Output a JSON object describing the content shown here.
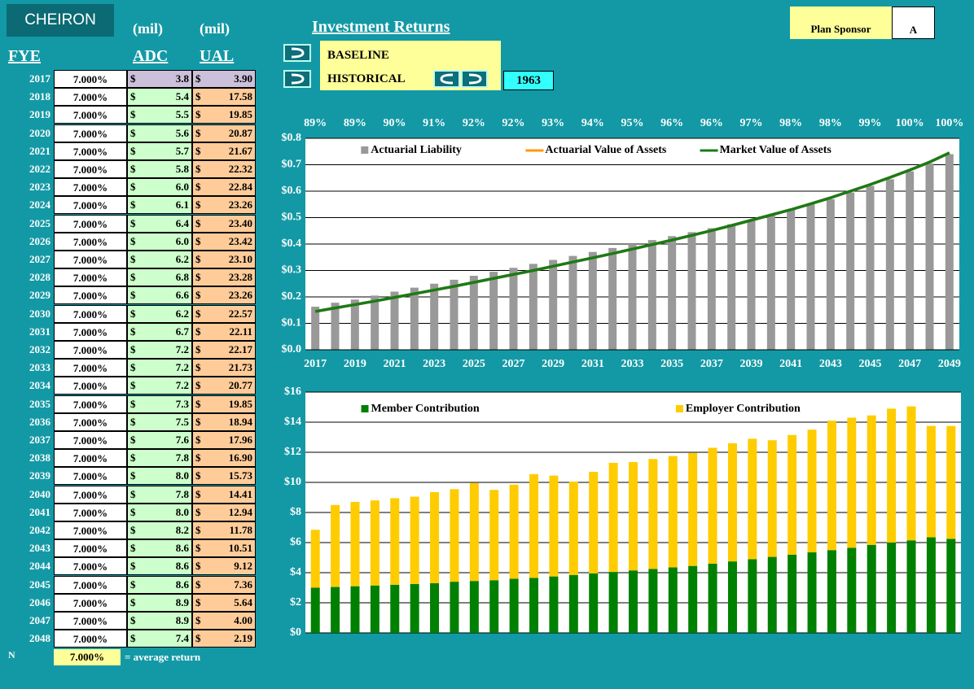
{
  "header": {
    "logo": "CHEIRON",
    "unit_adc": "(mil)",
    "unit_ual": "(mil)",
    "col_fye": "FYE",
    "col_adc": "ADC",
    "col_ual": "UAL",
    "section": "Investment Returns",
    "scenario_1": "BASELINE",
    "scenario_2": "HISTORICAL",
    "start_year": "1963",
    "sponsor_label": "Plan Sponsor",
    "sponsor": "A"
  },
  "table": {
    "currency": "$",
    "rows": [
      [
        "2017",
        "7.000%",
        "3.8",
        "3.90"
      ],
      [
        "2018",
        "7.000%",
        "5.4",
        "17.58"
      ],
      [
        "2019",
        "7.000%",
        "5.5",
        "19.85"
      ],
      [
        "2020",
        "7.000%",
        "5.6",
        "20.87"
      ],
      [
        "2021",
        "7.000%",
        "5.7",
        "21.67"
      ],
      [
        "2022",
        "7.000%",
        "5.8",
        "22.32"
      ],
      [
        "2023",
        "7.000%",
        "6.0",
        "22.84"
      ],
      [
        "2024",
        "7.000%",
        "6.1",
        "23.26"
      ],
      [
        "2025",
        "7.000%",
        "6.4",
        "23.40"
      ],
      [
        "2026",
        "7.000%",
        "6.0",
        "23.42"
      ],
      [
        "2027",
        "7.000%",
        "6.2",
        "23.10"
      ],
      [
        "2028",
        "7.000%",
        "6.8",
        "23.28"
      ],
      [
        "2029",
        "7.000%",
        "6.6",
        "23.26"
      ],
      [
        "2030",
        "7.000%",
        "6.2",
        "22.57"
      ],
      [
        "2031",
        "7.000%",
        "6.7",
        "22.11"
      ],
      [
        "2032",
        "7.000%",
        "7.2",
        "22.17"
      ],
      [
        "2033",
        "7.000%",
        "7.2",
        "21.73"
      ],
      [
        "2034",
        "7.000%",
        "7.2",
        "20.77"
      ],
      [
        "2035",
        "7.000%",
        "7.3",
        "19.85"
      ],
      [
        "2036",
        "7.000%",
        "7.5",
        "18.94"
      ],
      [
        "2037",
        "7.000%",
        "7.6",
        "17.96"
      ],
      [
        "2038",
        "7.000%",
        "7.8",
        "16.90"
      ],
      [
        "2039",
        "7.000%",
        "8.0",
        "15.73"
      ],
      [
        "2040",
        "7.000%",
        "7.8",
        "14.41"
      ],
      [
        "2041",
        "7.000%",
        "8.0",
        "12.94"
      ],
      [
        "2042",
        "7.000%",
        "8.2",
        "11.78"
      ],
      [
        "2043",
        "7.000%",
        "8.6",
        "10.51"
      ],
      [
        "2044",
        "7.000%",
        "8.6",
        "9.12"
      ],
      [
        "2045",
        "7.000%",
        "8.6",
        "7.36"
      ],
      [
        "2046",
        "7.000%",
        "8.9",
        "5.64"
      ],
      [
        "2047",
        "7.000%",
        "8.9",
        "4.00"
      ],
      [
        "2048",
        "7.000%",
        "7.4",
        "2.19"
      ]
    ]
  },
  "footer": {
    "label": "N",
    "average": "7.000%",
    "note": "= average return"
  },
  "chart_data": [
    {
      "type": "combo",
      "categories": [
        "2017",
        null,
        "2019",
        null,
        "2021",
        null,
        "2023",
        null,
        "2025",
        null,
        "2027",
        null,
        "2029",
        null,
        "2031",
        null,
        "2033",
        null,
        "2035",
        null,
        "2037",
        null,
        "2039",
        null,
        "2041",
        null,
        "2043",
        null,
        "2045",
        null,
        "2047",
        null,
        "2049"
      ],
      "funded_ratio_labels": [
        "89%",
        "89%",
        "90%",
        "91%",
        "92%",
        "92%",
        "93%",
        "94%",
        "95%",
        "96%",
        "96%",
        "97%",
        "98%",
        "98%",
        "99%",
        "100%",
        "100%"
      ],
      "ylim": [
        0,
        0.8
      ],
      "yticks": [
        {
          "value": 0,
          "label": "$0.0"
        },
        {
          "value": 0.1,
          "label": "$0.1"
        },
        {
          "value": 0.2,
          "label": "$0.2"
        },
        {
          "value": 0.3,
          "label": "$0.3"
        },
        {
          "value": 0.4,
          "label": "$0.4"
        },
        {
          "value": 0.5,
          "label": "$0.5"
        },
        {
          "value": 0.6,
          "label": "$0.6"
        },
        {
          "value": 0.7,
          "label": "$0.7"
        },
        {
          "value": 0.8,
          "label": "$0.8"
        }
      ],
      "grid": true,
      "legend": "top",
      "series": [
        {
          "name": "Actuarial Liability",
          "type": "bar",
          "color": "#999999",
          "values": [
            0.163,
            0.178,
            0.19,
            0.205,
            0.22,
            0.235,
            0.25,
            0.265,
            0.28,
            0.295,
            0.31,
            0.325,
            0.34,
            0.355,
            0.37,
            0.385,
            0.4,
            0.415,
            0.43,
            0.445,
            0.46,
            0.475,
            0.49,
            0.51,
            0.53,
            0.55,
            0.57,
            0.595,
            0.62,
            0.645,
            0.675,
            0.705,
            0.74
          ]
        },
        {
          "name": "Actuarial Value of Assets",
          "type": "line",
          "color": "#ff9900",
          "values": [
            0.145,
            0.158,
            0.171,
            0.184,
            0.198,
            0.212,
            0.226,
            0.24,
            0.255,
            0.27,
            0.285,
            0.3,
            0.316,
            0.332,
            0.348,
            0.364,
            0.381,
            0.398,
            0.415,
            0.433,
            0.451,
            0.47,
            0.49,
            0.51,
            0.53,
            0.552,
            0.575,
            0.6,
            0.625,
            0.652,
            0.68,
            0.71,
            0.745
          ]
        },
        {
          "name": "Market Value of Assets",
          "type": "line",
          "color": "#1a7a1a",
          "values": [
            0.145,
            0.158,
            0.171,
            0.184,
            0.198,
            0.212,
            0.226,
            0.24,
            0.255,
            0.27,
            0.285,
            0.3,
            0.316,
            0.332,
            0.348,
            0.364,
            0.381,
            0.398,
            0.415,
            0.433,
            0.451,
            0.47,
            0.49,
            0.51,
            0.53,
            0.552,
            0.575,
            0.6,
            0.625,
            0.652,
            0.68,
            0.71,
            0.745
          ]
        }
      ]
    },
    {
      "type": "stacked_bar",
      "ylim": [
        0,
        16
      ],
      "yticks": [
        {
          "value": 0,
          "label": "$0"
        },
        {
          "value": 2,
          "label": "$2"
        },
        {
          "value": 4,
          "label": "$4"
        },
        {
          "value": 6,
          "label": "$6"
        },
        {
          "value": 8,
          "label": "$8"
        },
        {
          "value": 10,
          "label": "$10"
        },
        {
          "value": 12,
          "label": "$12"
        },
        {
          "value": 14,
          "label": "$14"
        },
        {
          "value": 16,
          "label": "$16"
        }
      ],
      "grid": true,
      "legend": "top",
      "series": [
        {
          "name": "Member Contribution",
          "color": "#008000",
          "values": [
            3.0,
            3.05,
            3.1,
            3.15,
            3.2,
            3.25,
            3.3,
            3.4,
            3.45,
            3.5,
            3.6,
            3.65,
            3.75,
            3.85,
            3.95,
            4.05,
            4.15,
            4.25,
            4.35,
            4.45,
            4.6,
            4.75,
            4.9,
            5.05,
            5.2,
            5.35,
            5.5,
            5.65,
            5.85,
            6.0,
            6.15,
            6.35,
            6.25
          ]
        },
        {
          "name": "Employer Contribution",
          "color": "#ffcc00",
          "values": [
            3.85,
            5.45,
            5.6,
            5.65,
            5.75,
            5.8,
            6.05,
            6.15,
            6.5,
            6.0,
            6.25,
            6.9,
            6.7,
            6.2,
            6.75,
            7.25,
            7.2,
            7.3,
            7.4,
            7.5,
            7.7,
            7.85,
            8.0,
            7.75,
            7.95,
            8.15,
            8.6,
            8.65,
            8.6,
            8.9,
            8.9,
            7.4,
            7.5
          ]
        }
      ]
    }
  ]
}
